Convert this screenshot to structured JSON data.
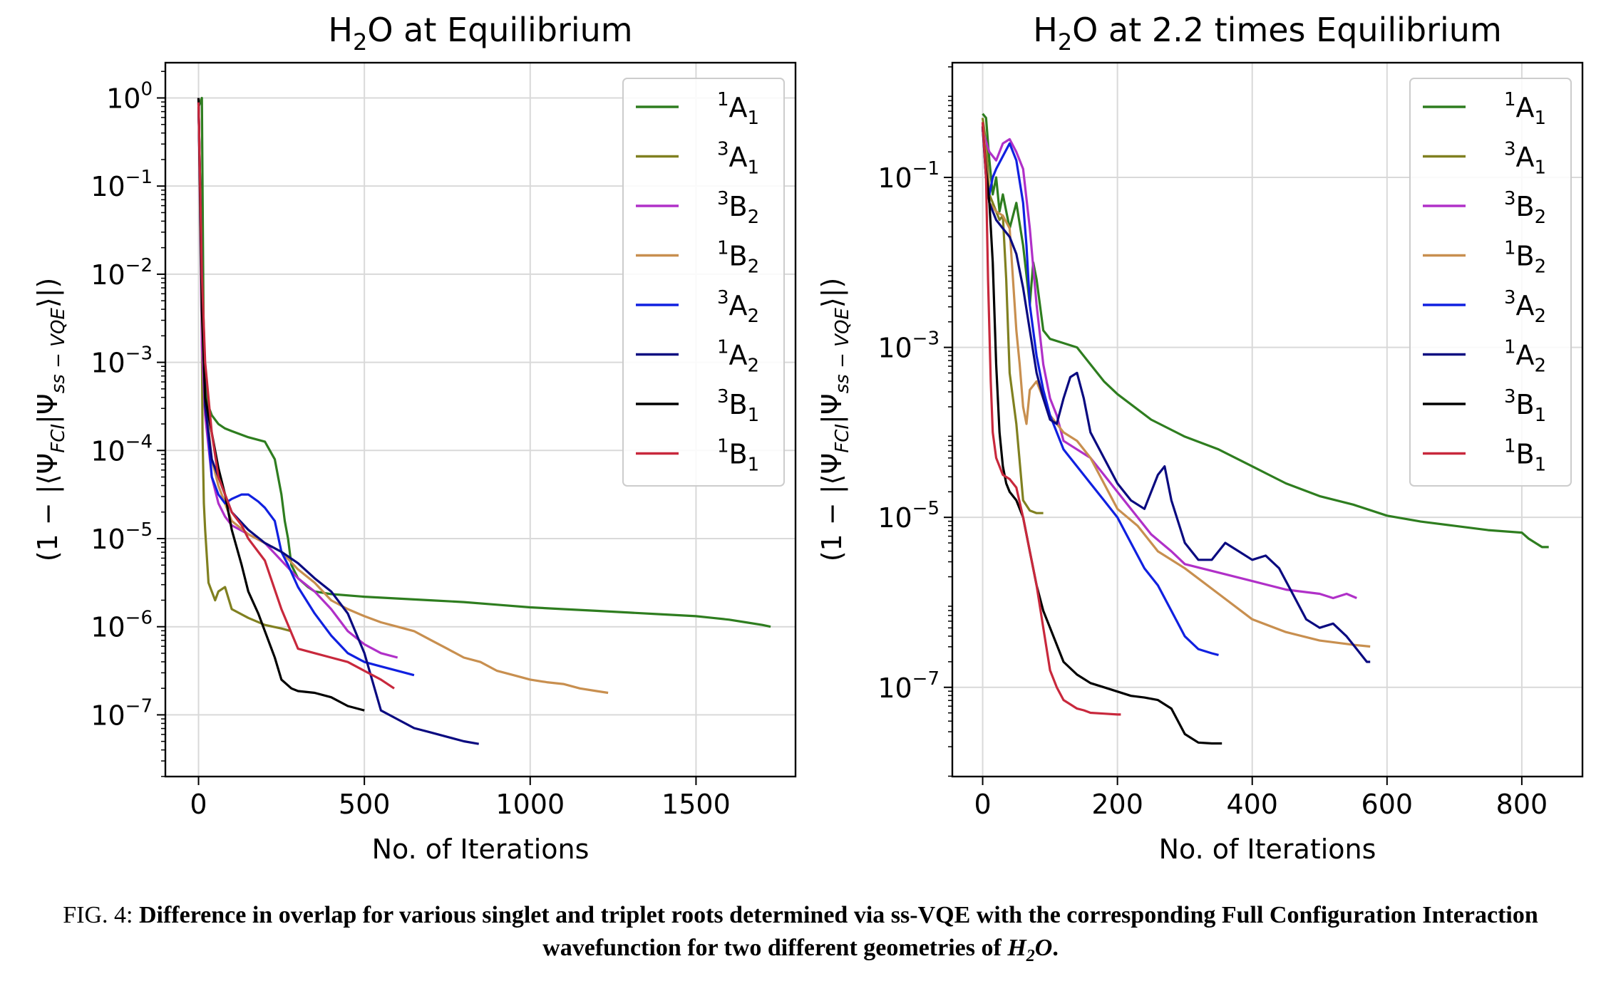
{
  "chart_data": [
    {
      "type": "line",
      "title_main": "H",
      "title_sub": "2",
      "title_rest": "O at Equilibrium",
      "xlabel": "No. of Iterations",
      "ylabel": "(1 − |⟨Ψ",
      "ylabel_sub1": "FCI",
      "ylabel_mid": "|Ψ",
      "ylabel_sub2": "ss − VQE",
      "ylabel_end": "⟩|)",
      "yscale": "log",
      "xlim": [
        -100,
        1800
      ],
      "ylim_exp": [
        -7.7,
        0.4
      ],
      "xticks": [
        "0",
        "500",
        "1000",
        "1500"
      ],
      "xtick_values": [
        0,
        500,
        1000,
        1500
      ],
      "yticks_exp": [
        0,
        -1,
        -2,
        -3,
        -4,
        -5,
        -6,
        -7
      ],
      "ytick_base": "10",
      "ytick_sup": [
        "0",
        "−1",
        "−2",
        "−3",
        "−4",
        "−5",
        "−6",
        "−7"
      ],
      "grid": true,
      "legend_position": "top-right",
      "series": [
        {
          "name_sup": "1",
          "name_main": "A",
          "name_sub": "1",
          "color": "#2e7d1f",
          "x": [
            0,
            10,
            15,
            20,
            30,
            40,
            60,
            80,
            100,
            150,
            200,
            230,
            250,
            260,
            270,
            280,
            300,
            330,
            350,
            400,
            500,
            600,
            700,
            800,
            900,
            1000,
            1100,
            1200,
            1300,
            1400,
            1500,
            1550,
            1600,
            1650,
            1700,
            1725
          ],
          "y": [
            -0.1,
            0.0,
            -2.5,
            -3.2,
            -3.5,
            -3.6,
            -3.7,
            -3.75,
            -3.78,
            -3.85,
            -3.9,
            -4.1,
            -4.5,
            -4.8,
            -5.0,
            -5.3,
            -5.45,
            -5.55,
            -5.6,
            -5.63,
            -5.66,
            -5.68,
            -5.7,
            -5.72,
            -5.75,
            -5.78,
            -5.8,
            -5.82,
            -5.84,
            -5.86,
            -5.88,
            -5.9,
            -5.92,
            -5.95,
            -5.98,
            -6.0
          ]
        },
        {
          "name_sup": "3",
          "name_main": "A",
          "name_sub": "1",
          "color": "#808020",
          "x": [
            0,
            8,
            12,
            16,
            20,
            30,
            40,
            50,
            60,
            80,
            100,
            150,
            200,
            250,
            280
          ],
          "y": [
            -0.1,
            -1.5,
            -3.8,
            -4.6,
            -4.9,
            -5.5,
            -5.6,
            -5.7,
            -5.6,
            -5.55,
            -5.8,
            -5.9,
            -5.98,
            -6.02,
            -6.05
          ]
        },
        {
          "name_sup": "3",
          "name_main": "B",
          "name_sub": "2",
          "color": "#b030c8",
          "x": [
            0,
            10,
            20,
            40,
            60,
            80,
            100,
            150,
            200,
            250,
            300,
            350,
            400,
            450,
            500,
            550,
            600
          ],
          "y": [
            0.0,
            -2.8,
            -3.6,
            -4.3,
            -4.6,
            -4.75,
            -4.85,
            -4.95,
            -5.05,
            -5.25,
            -5.45,
            -5.6,
            -5.8,
            -6.05,
            -6.2,
            -6.3,
            -6.35
          ]
        },
        {
          "name_sup": "1",
          "name_main": "B",
          "name_sub": "2",
          "color": "#c88f4f",
          "x": [
            0,
            10,
            20,
            40,
            60,
            80,
            100,
            150,
            200,
            250,
            300,
            350,
            400,
            450,
            500,
            550,
            600,
            650,
            700,
            750,
            800,
            850,
            900,
            950,
            1000,
            1050,
            1100,
            1150,
            1200,
            1235
          ],
          "y": [
            0.0,
            -2.5,
            -3.4,
            -4.1,
            -4.4,
            -4.6,
            -4.8,
            -4.95,
            -5.05,
            -5.15,
            -5.35,
            -5.5,
            -5.7,
            -5.8,
            -5.88,
            -5.95,
            -6.0,
            -6.05,
            -6.15,
            -6.25,
            -6.35,
            -6.4,
            -6.5,
            -6.55,
            -6.6,
            -6.63,
            -6.65,
            -6.7,
            -6.73,
            -6.75
          ]
        },
        {
          "name_sup": "3",
          "name_main": "A",
          "name_sub": "2",
          "color": "#1020e0",
          "x": [
            0,
            10,
            20,
            40,
            60,
            80,
            100,
            130,
            150,
            180,
            200,
            230,
            250,
            270,
            300,
            350,
            400,
            450,
            500,
            550,
            600,
            650
          ],
          "y": [
            -0.05,
            -2.0,
            -3.4,
            -4.3,
            -4.5,
            -4.6,
            -4.55,
            -4.5,
            -4.5,
            -4.58,
            -4.65,
            -4.8,
            -5.15,
            -5.3,
            -5.55,
            -5.85,
            -6.1,
            -6.3,
            -6.4,
            -6.45,
            -6.5,
            -6.55
          ]
        },
        {
          "name_sup": "1",
          "name_main": "A",
          "name_sub": "2",
          "color": "#0a0a80",
          "x": [
            0,
            10,
            20,
            40,
            60,
            80,
            100,
            150,
            200,
            250,
            300,
            350,
            400,
            450,
            500,
            550,
            600,
            650,
            700,
            750,
            800,
            845
          ],
          "y": [
            -0.05,
            -2.2,
            -3.5,
            -4.1,
            -4.3,
            -4.5,
            -4.7,
            -4.9,
            -5.05,
            -5.15,
            -5.28,
            -5.45,
            -5.6,
            -5.85,
            -6.3,
            -6.95,
            -7.05,
            -7.15,
            -7.2,
            -7.25,
            -7.3,
            -7.33
          ]
        },
        {
          "name_sup": "3",
          "name_main": "B",
          "name_sub": "1",
          "color": "#000000",
          "x": [
            0,
            10,
            20,
            40,
            60,
            80,
            100,
            130,
            150,
            180,
            200,
            230,
            250,
            280,
            300,
            350,
            400,
            450,
            500
          ],
          "y": [
            0.0,
            -2.4,
            -3.4,
            -3.8,
            -4.2,
            -4.5,
            -4.9,
            -5.3,
            -5.6,
            -5.85,
            -6.05,
            -6.35,
            -6.6,
            -6.7,
            -6.73,
            -6.75,
            -6.8,
            -6.9,
            -6.95
          ]
        },
        {
          "name_sup": "1",
          "name_main": "B",
          "name_sub": "1",
          "color": "#c8283c",
          "x": [
            0,
            10,
            20,
            40,
            60,
            80,
            100,
            130,
            150,
            200,
            250,
            300,
            350,
            400,
            450,
            500,
            550,
            590
          ],
          "y": [
            -0.05,
            -2.0,
            -3.0,
            -3.8,
            -4.3,
            -4.5,
            -4.7,
            -4.85,
            -5.0,
            -5.25,
            -5.8,
            -6.25,
            -6.3,
            -6.35,
            -6.4,
            -6.5,
            -6.6,
            -6.7
          ]
        }
      ]
    },
    {
      "type": "line",
      "title_main": "H",
      "title_sub": "2",
      "title_rest": "O at 2.2 times Equilibrium",
      "xlabel": "No. of Iterations",
      "ylabel": "(1 − |⟨Ψ",
      "ylabel_sub1": "FCI",
      "ylabel_mid": "|Ψ",
      "ylabel_sub2": "ss − VQE",
      "ylabel_end": "⟩|)",
      "yscale": "log",
      "xlim": [
        -45,
        890
      ],
      "ylim_exp": [
        -8.05,
        0.35
      ],
      "xticks": [
        "0",
        "200",
        "400",
        "600",
        "800"
      ],
      "xtick_values": [
        0,
        200,
        400,
        600,
        800
      ],
      "yticks_exp": [
        -1,
        -3,
        -5,
        -7
      ],
      "ytick_base": "10",
      "ytick_sup": [
        "−1",
        "−3",
        "−5",
        "−7"
      ],
      "grid": true,
      "legend_position": "top-right",
      "series": [
        {
          "name_sup": "1",
          "name_main": "A",
          "name_sub": "1",
          "color": "#2e7d1f",
          "x": [
            0,
            5,
            10,
            15,
            20,
            25,
            30,
            40,
            50,
            60,
            70,
            75,
            80,
            90,
            100,
            120,
            140,
            160,
            180,
            200,
            250,
            300,
            350,
            400,
            450,
            500,
            550,
            600,
            650,
            700,
            750,
            800,
            810,
            830,
            840
          ],
          "y": [
            -0.25,
            -0.3,
            -0.8,
            -1.2,
            -1.0,
            -1.4,
            -1.2,
            -1.6,
            -1.3,
            -1.8,
            -2.5,
            -2.0,
            -2.2,
            -2.8,
            -2.9,
            -2.95,
            -3.0,
            -3.2,
            -3.4,
            -3.55,
            -3.85,
            -4.05,
            -4.2,
            -4.4,
            -4.6,
            -4.75,
            -4.85,
            -4.98,
            -5.05,
            -5.1,
            -5.15,
            -5.18,
            -5.25,
            -5.35,
            -5.35
          ]
        },
        {
          "name_sup": "3",
          "name_main": "A",
          "name_sub": "1",
          "color": "#808020",
          "x": [
            0,
            5,
            10,
            20,
            25,
            30,
            35,
            40,
            50,
            60,
            70,
            80,
            90
          ],
          "y": [
            -0.3,
            -0.6,
            -1.2,
            -1.4,
            -1.5,
            -1.45,
            -2.2,
            -3.3,
            -3.9,
            -4.8,
            -4.92,
            -4.95,
            -4.95
          ]
        },
        {
          "name_sup": "3",
          "name_main": "B",
          "name_sub": "2",
          "color": "#b030c8",
          "x": [
            0,
            10,
            20,
            30,
            40,
            50,
            60,
            70,
            80,
            90,
            100,
            110,
            120,
            140,
            160,
            180,
            200,
            220,
            250,
            280,
            300,
            350,
            400,
            450,
            500,
            520,
            540,
            555
          ],
          "y": [
            -0.45,
            -0.7,
            -0.8,
            -0.6,
            -0.55,
            -0.7,
            -0.9,
            -1.6,
            -2.5,
            -3.2,
            -3.6,
            -3.8,
            -4.1,
            -4.2,
            -4.3,
            -4.5,
            -4.7,
            -4.9,
            -5.2,
            -5.4,
            -5.55,
            -5.65,
            -5.75,
            -5.85,
            -5.9,
            -5.95,
            -5.9,
            -5.95
          ]
        },
        {
          "name_sup": "1",
          "name_main": "B",
          "name_sub": "2",
          "color": "#c88f4f",
          "x": [
            0,
            5,
            10,
            20,
            30,
            40,
            45,
            50,
            55,
            60,
            65,
            70,
            80,
            90,
            100,
            120,
            140,
            160,
            180,
            200,
            230,
            260,
            300,
            350,
            400,
            450,
            500,
            550,
            575
          ],
          "y": [
            -0.35,
            -0.8,
            -1.3,
            -1.4,
            -1.45,
            -1.6,
            -2.2,
            -2.8,
            -3.2,
            -3.7,
            -3.9,
            -3.5,
            -3.4,
            -3.6,
            -3.8,
            -4.0,
            -4.1,
            -4.3,
            -4.6,
            -4.9,
            -5.1,
            -5.4,
            -5.6,
            -5.9,
            -6.2,
            -6.35,
            -6.45,
            -6.5,
            -6.52
          ]
        },
        {
          "name_sup": "3",
          "name_main": "A",
          "name_sub": "2",
          "color": "#1020e0",
          "x": [
            0,
            5,
            10,
            15,
            20,
            30,
            40,
            50,
            60,
            65,
            70,
            80,
            90,
            100,
            120,
            140,
            160,
            180,
            200,
            220,
            240,
            260,
            280,
            300,
            320,
            340,
            350
          ],
          "y": [
            -0.4,
            -1.0,
            -1.2,
            -1.0,
            -0.9,
            -0.75,
            -0.6,
            -0.8,
            -1.3,
            -1.8,
            -2.5,
            -3.1,
            -3.5,
            -3.8,
            -4.2,
            -4.4,
            -4.6,
            -4.8,
            -5.0,
            -5.3,
            -5.6,
            -5.8,
            -6.1,
            -6.4,
            -6.55,
            -6.6,
            -6.62
          ]
        },
        {
          "name_sup": "1",
          "name_main": "A",
          "name_sub": "2",
          "color": "#0a0a80",
          "x": [
            0,
            5,
            10,
            20,
            30,
            40,
            50,
            60,
            70,
            80,
            90,
            100,
            110,
            120,
            130,
            140,
            150,
            160,
            180,
            200,
            220,
            240,
            260,
            270,
            280,
            300,
            320,
            340,
            360,
            380,
            400,
            420,
            440,
            460,
            480,
            500,
            520,
            540,
            560,
            570,
            575
          ],
          "y": [
            -0.4,
            -1.0,
            -1.3,
            -1.5,
            -1.6,
            -1.7,
            -1.9,
            -2.3,
            -2.8,
            -3.3,
            -3.6,
            -3.85,
            -3.9,
            -3.6,
            -3.35,
            -3.3,
            -3.6,
            -4.0,
            -4.3,
            -4.6,
            -4.8,
            -4.9,
            -4.5,
            -4.4,
            -4.8,
            -5.3,
            -5.5,
            -5.5,
            -5.3,
            -5.4,
            -5.5,
            -5.45,
            -5.6,
            -5.9,
            -6.2,
            -6.3,
            -6.25,
            -6.4,
            -6.6,
            -6.7,
            -6.7
          ]
        },
        {
          "name_sup": "3",
          "name_main": "B",
          "name_sub": "1",
          "color": "#000000",
          "x": [
            0,
            5,
            10,
            15,
            20,
            25,
            30,
            35,
            40,
            50,
            60,
            70,
            80,
            90,
            100,
            120,
            140,
            160,
            180,
            200,
            220,
            240,
            260,
            280,
            300,
            320,
            340,
            355
          ],
          "y": [
            -0.4,
            -0.9,
            -1.3,
            -2.0,
            -3.2,
            -4.0,
            -4.4,
            -4.6,
            -4.7,
            -4.8,
            -5.0,
            -5.4,
            -5.8,
            -6.1,
            -6.3,
            -6.7,
            -6.85,
            -6.95,
            -7.0,
            -7.05,
            -7.1,
            -7.12,
            -7.15,
            -7.25,
            -7.55,
            -7.65,
            -7.66,
            -7.66
          ]
        },
        {
          "name_sup": "1",
          "name_main": "B",
          "name_sub": "1",
          "color": "#c8283c",
          "x": [
            0,
            5,
            8,
            12,
            15,
            20,
            30,
            40,
            50,
            60,
            70,
            80,
            90,
            100,
            110,
            120,
            130,
            140,
            150,
            160,
            180,
            200,
            205
          ],
          "y": [
            -0.35,
            -1.0,
            -2.2,
            -3.4,
            -4.0,
            -4.3,
            -4.5,
            -4.55,
            -4.65,
            -5.0,
            -5.4,
            -5.8,
            -6.3,
            -6.8,
            -7.0,
            -7.15,
            -7.2,
            -7.25,
            -7.27,
            -7.3,
            -7.31,
            -7.32,
            -7.32
          ]
        }
      ]
    }
  ],
  "caption": {
    "fig_label": "FIG. 4:",
    "text": "Difference in overlap for various singlet and triplet roots determined via ss-VQE with the corresponding Full Configuration Interaction wavefunction for two different geometries of",
    "tail_main": "H",
    "tail_sub": "2",
    "tail_rest": "O",
    "tail_end": "."
  }
}
